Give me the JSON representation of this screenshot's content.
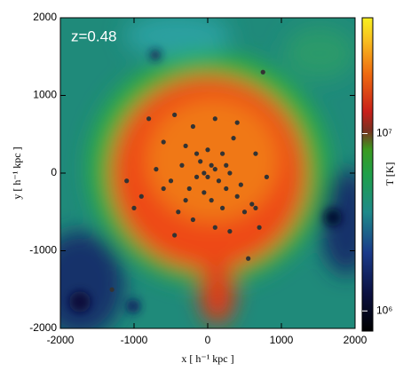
{
  "chart_data": {
    "type": "scatter",
    "annotation": "z=0.48",
    "xlabel": "x [ h⁻¹ kpc ]",
    "ylabel": "y [ h⁻¹ kpc ]",
    "colorbar_label": "T [K]",
    "xlim": [
      -2000,
      2000
    ],
    "ylim": [
      -2000,
      2000
    ],
    "xticks": [
      -2000,
      -1000,
      0,
      1000,
      2000
    ],
    "yticks": [
      -2000,
      -1000,
      0,
      1000,
      2000
    ],
    "clim": [
      770000,
      45000000
    ],
    "clog": true,
    "cticks": [
      {
        "value": 1000000,
        "label": "10⁶"
      },
      {
        "value": 10000000,
        "label": "10⁷"
      }
    ],
    "series": [
      {
        "color": "#333333",
        "x": [
          -800,
          -450,
          -200,
          100,
          400,
          350,
          -600,
          -300,
          0,
          200,
          -100,
          50,
          100,
          -50,
          0,
          150,
          -150,
          300,
          250,
          -250,
          400,
          500,
          600,
          -400,
          -600,
          -900,
          -700,
          -1100,
          -1000,
          -200,
          100,
          300,
          700,
          800,
          650,
          -350,
          -50,
          50,
          200,
          450,
          -500,
          -150,
          250,
          -300,
          650,
          -450,
          550,
          -1300,
          750
        ],
        "values": [
          700,
          750,
          600,
          700,
          650,
          450,
          400,
          350,
          300,
          250,
          150,
          100,
          50,
          0,
          -50,
          -100,
          -50,
          0,
          -200,
          -200,
          -300,
          -500,
          -400,
          -500,
          -200,
          -300,
          50,
          -100,
          -450,
          -600,
          -700,
          -750,
          -700,
          -50,
          250,
          100,
          -250,
          -350,
          -450,
          -150,
          -100,
          250,
          100,
          -350,
          -450,
          -800,
          -1100,
          -1500,
          1300
        ]
      }
    ]
  }
}
